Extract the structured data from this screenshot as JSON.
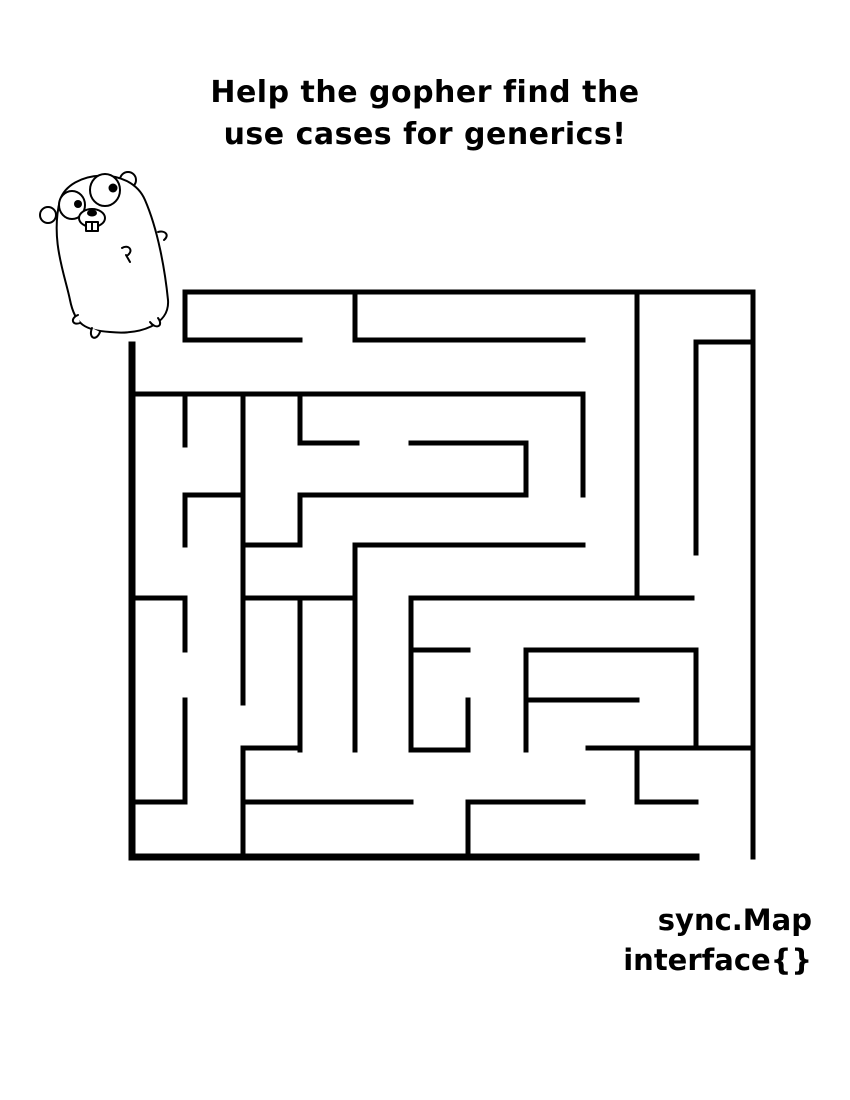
{
  "title": {
    "line1": "Help the gopher find the",
    "line2": "use cases for generics!"
  },
  "answers": {
    "line1": "sync.Map",
    "line2": "interface{}"
  },
  "colors": {
    "ink": "#000000",
    "background": "#ffffff"
  },
  "icons": {
    "character": "gopher-mascot-icon"
  }
}
